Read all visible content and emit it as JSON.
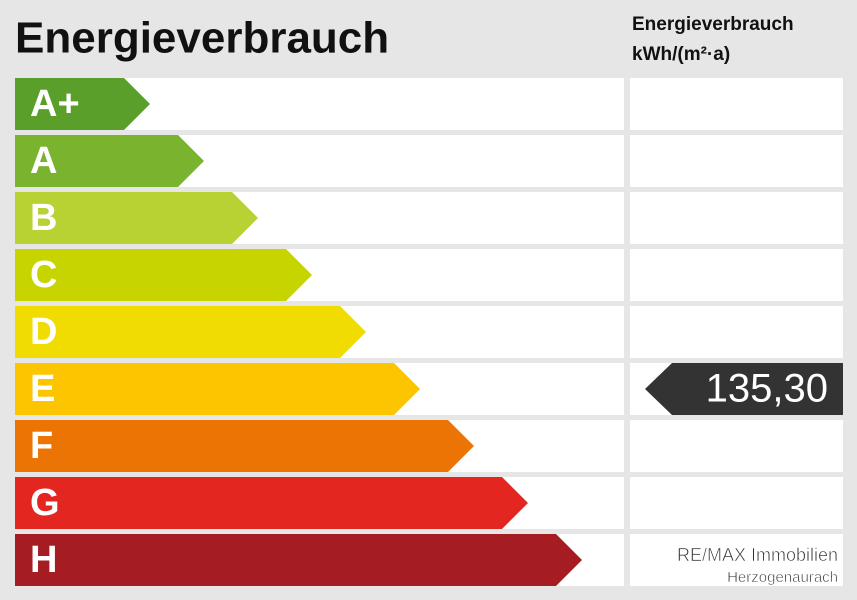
{
  "title": "Energieverbrauch",
  "unit_header": {
    "line1": "Energieverbrauch",
    "line2": "kWh/(m²·a)"
  },
  "classes": [
    {
      "label": "A+",
      "color": "#5b9f2b"
    },
    {
      "label": "A",
      "color": "#7ab32e"
    },
    {
      "label": "B",
      "color": "#b8d133"
    },
    {
      "label": "C",
      "color": "#c8d400"
    },
    {
      "label": "D",
      "color": "#f0dc00"
    },
    {
      "label": "E",
      "color": "#fdc400",
      "value": "135,30"
    },
    {
      "label": "F",
      "color": "#ec7405"
    },
    {
      "label": "G",
      "color": "#e3261f"
    },
    {
      "label": "H",
      "color": "#a61c23"
    }
  ],
  "footer": {
    "line1": "RE/MAX Immobilien",
    "line2": "Herzogenaurach"
  }
}
